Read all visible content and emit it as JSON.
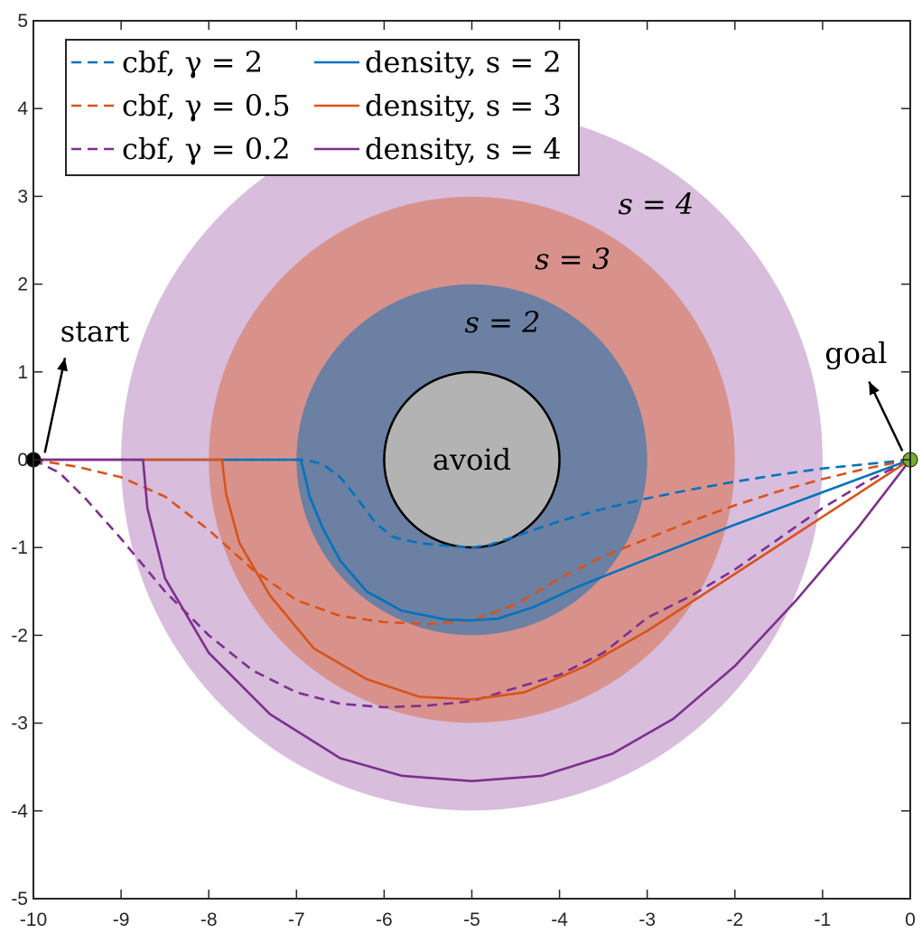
{
  "chart_data": {
    "type": "line",
    "xlim": [
      -10,
      0
    ],
    "ylim": [
      -5,
      5
    ],
    "x_ticks": [
      -10,
      -9,
      -8,
      -7,
      -6,
      -5,
      -4,
      -3,
      -2,
      -1,
      0
    ],
    "y_ticks": [
      -5,
      -4,
      -3,
      -2,
      -1,
      0,
      1,
      2,
      3,
      4,
      5
    ],
    "x_tick_labels": [
      "-10",
      "-9",
      "-8",
      "-7",
      "-6",
      "-5",
      "-4",
      "-3",
      "-2",
      "-1",
      "0"
    ],
    "y_tick_labels": [
      "-5",
      "-4",
      "-3",
      "-2",
      "-1",
      "0",
      "1",
      "2",
      "3",
      "4",
      "5"
    ],
    "grid": false,
    "box": true,
    "legend_position": "top-left",
    "legend_columns": 2,
    "colors": {
      "blue": "#0072BD",
      "orange": "#D95319",
      "purple": "#7E2F8E",
      "region_s4": "#D8BDDD",
      "region_s3": "#D8928B",
      "region_s2": "#6B80A3",
      "obstacle": "#B3B3B3",
      "start_marker": "#000000",
      "goal_marker": "#77AC30"
    },
    "regions": [
      {
        "label": "s = 4",
        "center": [
          -5,
          0
        ],
        "radius": 4.0,
        "color_key": "region_s4",
        "label_at": [
          -2.9,
          2.8
        ]
      },
      {
        "label": "s = 3",
        "center": [
          -5,
          0
        ],
        "radius": 3.0,
        "color_key": "region_s3",
        "label_at": [
          -3.85,
          2.17
        ]
      },
      {
        "label": "s = 2",
        "center": [
          -5,
          0
        ],
        "radius": 2.0,
        "color_key": "region_s2",
        "label_at": [
          -4.65,
          1.45
        ]
      }
    ],
    "obstacle": {
      "label": "avoid",
      "center": [
        -5,
        0
      ],
      "radius": 1.0
    },
    "annotations": [
      {
        "text": "start",
        "text_at": [
          -9.3,
          1.35
        ],
        "arrow_from": [
          -9.64,
          1.16
        ],
        "arrow_to": [
          -9.87,
          0.08
        ]
      },
      {
        "text": "goal",
        "text_at": [
          -0.62,
          1.1
        ],
        "arrow_from": [
          -0.47,
          0.89
        ],
        "arrow_to": [
          -0.09,
          0.1
        ]
      }
    ],
    "markers": [
      {
        "name": "start",
        "point": [
          -10,
          0
        ],
        "color_key": "start_marker"
      },
      {
        "name": "goal",
        "point": [
          0,
          0
        ],
        "color_key": "goal_marker"
      }
    ],
    "series": [
      {
        "name": "cbf, γ = 2",
        "color_key": "blue",
        "dash": true,
        "points": [
          [
            -10,
            0
          ],
          [
            -9,
            0
          ],
          [
            -8,
            0
          ],
          [
            -7,
            0
          ],
          [
            -6.9,
            0
          ],
          [
            -6.7,
            -0.05
          ],
          [
            -6.5,
            -0.2
          ],
          [
            -6.3,
            -0.45
          ],
          [
            -6.1,
            -0.72
          ],
          [
            -5.9,
            -0.88
          ],
          [
            -5.6,
            -0.95
          ],
          [
            -5.2,
            -0.99
          ],
          [
            -5,
            -1.0
          ],
          [
            -4.8,
            -0.97
          ],
          [
            -4.5,
            -0.87
          ],
          [
            -4,
            -0.7
          ],
          [
            -3.5,
            -0.56
          ],
          [
            -3,
            -0.44
          ],
          [
            -2.5,
            -0.34
          ],
          [
            -2,
            -0.25
          ],
          [
            -1.5,
            -0.17
          ],
          [
            -1,
            -0.1
          ],
          [
            -0.5,
            -0.05
          ],
          [
            0,
            0
          ]
        ]
      },
      {
        "name": "cbf, γ = 0.5",
        "color_key": "orange",
        "dash": true,
        "points": [
          [
            -10,
            0
          ],
          [
            -9.5,
            -0.08
          ],
          [
            -9,
            -0.2
          ],
          [
            -8.5,
            -0.42
          ],
          [
            -8,
            -0.8
          ],
          [
            -7.5,
            -1.25
          ],
          [
            -7,
            -1.6
          ],
          [
            -6.5,
            -1.78
          ],
          [
            -6,
            -1.85
          ],
          [
            -5.5,
            -1.87
          ],
          [
            -5,
            -1.83
          ],
          [
            -4.5,
            -1.65
          ],
          [
            -4,
            -1.35
          ],
          [
            -3.5,
            -1.1
          ],
          [
            -3,
            -0.9
          ],
          [
            -2.5,
            -0.7
          ],
          [
            -2,
            -0.52
          ],
          [
            -1.5,
            -0.36
          ],
          [
            -1,
            -0.22
          ],
          [
            -0.5,
            -0.1
          ],
          [
            0,
            0
          ]
        ]
      },
      {
        "name": "cbf, γ = 0.2",
        "color_key": "purple",
        "dash": true,
        "points": [
          [
            -10,
            0
          ],
          [
            -9.7,
            -0.15
          ],
          [
            -9.4,
            -0.45
          ],
          [
            -9,
            -0.9
          ],
          [
            -8.5,
            -1.5
          ],
          [
            -8,
            -2.0
          ],
          [
            -7.5,
            -2.4
          ],
          [
            -7,
            -2.65
          ],
          [
            -6.5,
            -2.78
          ],
          [
            -6,
            -2.82
          ],
          [
            -5.5,
            -2.8
          ],
          [
            -5,
            -2.75
          ],
          [
            -4.5,
            -2.6
          ],
          [
            -4,
            -2.45
          ],
          [
            -3.5,
            -2.2
          ],
          [
            -3,
            -1.8
          ],
          [
            -2.5,
            -1.55
          ],
          [
            -2,
            -1.25
          ],
          [
            -1.5,
            -0.9
          ],
          [
            -1,
            -0.55
          ],
          [
            -0.5,
            -0.25
          ],
          [
            0,
            0
          ]
        ]
      },
      {
        "name": "density, s = 2",
        "color_key": "blue",
        "dash": false,
        "points": [
          [
            -10,
            0
          ],
          [
            -6.95,
            0
          ],
          [
            -6.9,
            -0.2
          ],
          [
            -6.85,
            -0.42
          ],
          [
            -6.7,
            -0.78
          ],
          [
            -6.5,
            -1.15
          ],
          [
            -6.2,
            -1.5
          ],
          [
            -5.8,
            -1.72
          ],
          [
            -5.3,
            -1.82
          ],
          [
            -5,
            -1.83
          ],
          [
            -4.7,
            -1.81
          ],
          [
            -4.3,
            -1.68
          ],
          [
            -3.8,
            -1.45
          ],
          [
            -3,
            -1.13
          ],
          [
            -2,
            -0.74
          ],
          [
            -1,
            -0.37
          ],
          [
            0,
            0
          ]
        ]
      },
      {
        "name": "density, s = 3",
        "color_key": "orange",
        "dash": false,
        "points": [
          [
            -10,
            0
          ],
          [
            -7.85,
            0
          ],
          [
            -7.8,
            -0.4
          ],
          [
            -7.65,
            -0.95
          ],
          [
            -7.3,
            -1.55
          ],
          [
            -6.8,
            -2.15
          ],
          [
            -6.2,
            -2.5
          ],
          [
            -5.6,
            -2.7
          ],
          [
            -5,
            -2.73
          ],
          [
            -4.4,
            -2.65
          ],
          [
            -3.7,
            -2.35
          ],
          [
            -3,
            -1.95
          ],
          [
            -2,
            -1.3
          ],
          [
            -1,
            -0.65
          ],
          [
            0,
            0
          ]
        ]
      },
      {
        "name": "density, s = 4",
        "color_key": "purple",
        "dash": false,
        "points": [
          [
            -10,
            0
          ],
          [
            -8.75,
            0
          ],
          [
            -8.7,
            -0.55
          ],
          [
            -8.5,
            -1.35
          ],
          [
            -8,
            -2.2
          ],
          [
            -7.3,
            -2.9
          ],
          [
            -6.5,
            -3.4
          ],
          [
            -5.8,
            -3.6
          ],
          [
            -5,
            -3.66
          ],
          [
            -4.2,
            -3.6
          ],
          [
            -3.4,
            -3.35
          ],
          [
            -2.7,
            -2.95
          ],
          [
            -2,
            -2.35
          ],
          [
            -1.3,
            -1.6
          ],
          [
            -0.6,
            -0.78
          ],
          [
            0,
            0
          ]
        ]
      }
    ]
  }
}
